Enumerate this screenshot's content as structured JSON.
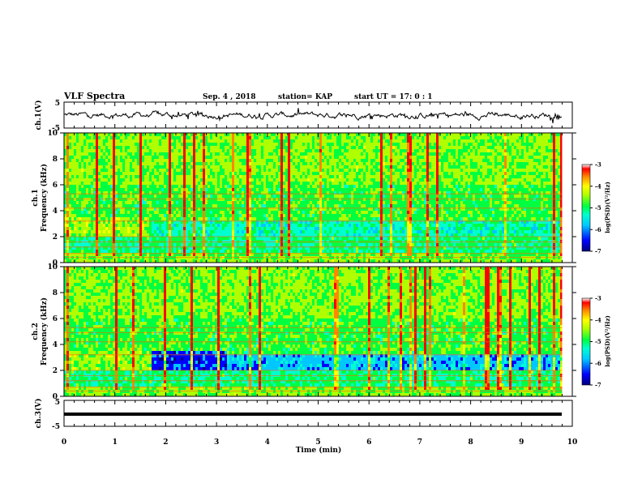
{
  "header": {
    "title": "VLF Spectra",
    "date": "Sep. 4 , 2018",
    "station": "station= KAP",
    "start_ut": "start UT =  17: 0  : 1"
  },
  "chart_data": [
    {
      "type": "line",
      "panel": "ch1-waveform",
      "ylabel": "ch.1(V)",
      "ylim": [
        -5,
        5
      ],
      "yticks": [
        "5",
        "-5"
      ],
      "x_range_min": [
        0,
        9.8
      ],
      "description_values": "noisy voltage trace fluctuating roughly between -1.5 and 1.5 V"
    },
    {
      "type": "heatmap",
      "panel": "ch1-spectrogram",
      "ylabel": "ch.1\nFrequency (kHz)",
      "ylim": [
        0,
        10
      ],
      "yticks": [
        "0",
        "2",
        "4",
        "6",
        "8",
        "10"
      ],
      "colorbar": {
        "label": "log(PSD)(V²/Hz)",
        "range": [
          -7,
          -3
        ],
        "ticks": [
          "-3",
          "-4",
          "-5",
          "-6",
          "-7"
        ]
      }
    },
    {
      "type": "heatmap",
      "panel": "ch2-spectrogram",
      "ylabel": "ch.2\nFrequency (kHz)",
      "ylim": [
        0,
        10
      ],
      "yticks": [
        "0",
        "2",
        "4",
        "6",
        "8",
        "10"
      ],
      "colorbar": {
        "label": "log(PSD)(V²/Hz)",
        "range": [
          -7,
          -3
        ],
        "ticks": [
          "-3",
          "-4",
          "-5",
          "-6",
          "-7"
        ]
      }
    },
    {
      "type": "line",
      "panel": "ch3-waveform",
      "ylabel": "ch.3(V)",
      "ylim": [
        -5,
        5
      ],
      "yticks": [
        "5",
        "-5"
      ],
      "constant_value": -1
    }
  ],
  "xaxis": {
    "label": "Time (min)",
    "ticks": [
      "0",
      "1",
      "2",
      "3",
      "4",
      "5",
      "6",
      "7",
      "8",
      "9",
      "10"
    ]
  },
  "colors": {
    "colormap": [
      "#0000b0",
      "#0000ff",
      "#00c8ff",
      "#00ffcc",
      "#00ff44",
      "#a8ff00",
      "#ffff00",
      "#ff8800",
      "#ff0000"
    ]
  }
}
